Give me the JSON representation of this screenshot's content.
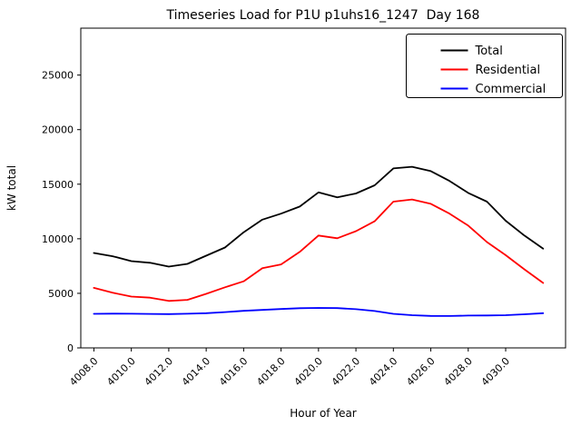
{
  "chart_data": {
    "type": "line",
    "title": "Timeseries Load for P1U p1uhs16_1247  Day 168",
    "xlabel": "Hour of Year",
    "ylabel": "kW total",
    "x": [
      4008,
      4009,
      4010,
      4011,
      4012,
      4013,
      4014,
      4015,
      4016,
      4017,
      4018,
      4019,
      4020,
      4021,
      4022,
      4023,
      4024,
      4025,
      4026,
      4027,
      4028,
      4029,
      4030,
      4031,
      4032
    ],
    "series": [
      {
        "name": "Total",
        "color": "#000000",
        "values": [
          8700,
          8400,
          7950,
          7800,
          7450,
          7700,
          8450,
          9200,
          10600,
          11750,
          12300,
          12950,
          14250,
          13800,
          14150,
          14900,
          16450,
          16600,
          16200,
          15300,
          14200,
          13400,
          11650,
          10300,
          9100
        ]
      },
      {
        "name": "Residential",
        "color": "#ff0000",
        "values": [
          5500,
          5050,
          4700,
          4600,
          4300,
          4400,
          4950,
          5550,
          6100,
          7300,
          7650,
          8800,
          10300,
          10050,
          10700,
          11600,
          13400,
          13600,
          13200,
          12300,
          11200,
          9700,
          8500,
          7200,
          5950
        ]
      },
      {
        "name": "Commercial",
        "color": "#0000ff",
        "values": [
          3120,
          3140,
          3130,
          3110,
          3100,
          3130,
          3180,
          3280,
          3400,
          3480,
          3560,
          3640,
          3660,
          3650,
          3550,
          3380,
          3120,
          3000,
          2930,
          2920,
          2960,
          2970,
          3000,
          3080,
          3180
        ]
      }
    ],
    "xticks": [
      4008,
      4010,
      4012,
      4014,
      4016,
      4018,
      4020,
      4022,
      4024,
      4026,
      4028,
      4030
    ],
    "xtick_labels": [
      "4008.0",
      "4010.0",
      "4012.0",
      "4014.0",
      "4016.0",
      "4018.0",
      "4020.0",
      "4022.0",
      "4024.0",
      "4026.0",
      "4028.0",
      "4030.0"
    ],
    "yticks": [
      0,
      5000,
      10000,
      15000,
      20000,
      25000
    ],
    "ytick_labels": [
      "0",
      "5000",
      "10000",
      "15000",
      "20000",
      "25000"
    ],
    "xlim": [
      4007.3,
      4033.2
    ],
    "ylim": [
      0,
      29300
    ],
    "grid": false,
    "legend_position": "upper right",
    "legend_entries": [
      "Total",
      "Residential",
      "Commercial"
    ]
  }
}
